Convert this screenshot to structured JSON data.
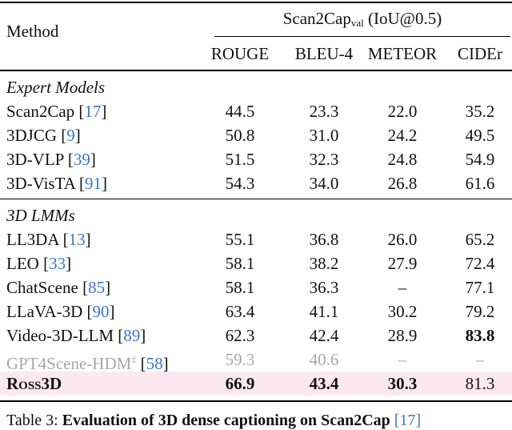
{
  "header": {
    "method": "Method",
    "group_main": "Scan2Cap",
    "group_sub": "val",
    "group_suffix": "(IoU@0.5)",
    "columns": [
      "ROUGE",
      "BLEU-4",
      "METEOR",
      "CIDEr"
    ]
  },
  "sections": [
    {
      "title": "Expert Models",
      "rows": [
        {
          "method": "Scan2Cap",
          "cite": "17",
          "values": [
            "44.5",
            "23.3",
            "22.0",
            "35.2"
          ]
        },
        {
          "method": "3DJCG",
          "cite": "9",
          "values": [
            "50.8",
            "31.0",
            "24.2",
            "49.5"
          ]
        },
        {
          "method": "3D-VLP",
          "cite": "39",
          "values": [
            "51.5",
            "32.3",
            "24.8",
            "54.9"
          ]
        },
        {
          "method": "3D-VisTA",
          "cite": "91",
          "values": [
            "54.3",
            "34.0",
            "26.8",
            "61.6"
          ]
        }
      ]
    },
    {
      "title": "3D LMMs",
      "rows": [
        {
          "method": "LL3DA",
          "cite": "13",
          "values": [
            "55.1",
            "36.8",
            "26.0",
            "65.2"
          ]
        },
        {
          "method": "LEO",
          "cite": "33",
          "values": [
            "58.1",
            "38.2",
            "27.9",
            "72.4"
          ]
        },
        {
          "method": "ChatScene",
          "cite": "85",
          "values": [
            "58.1",
            "36.3",
            "–",
            "77.1"
          ]
        },
        {
          "method": "LLaVA-3D",
          "cite": "90",
          "values": [
            "63.4",
            "41.1",
            "30.2",
            "79.2"
          ]
        },
        {
          "method": "Video-3D-LLM",
          "cite": "89",
          "values": [
            "62.3",
            "42.4",
            "28.9",
            "83.8"
          ],
          "bold": [
            false,
            false,
            false,
            true
          ]
        },
        {
          "method": "GPT4Scene-HDM",
          "sup": "‡",
          "cite": "58",
          "values": [
            "59.3",
            "40.6",
            "–",
            "–"
          ],
          "gray": true
        },
        {
          "method": "Ross3D",
          "values": [
            "66.9",
            "43.4",
            "30.3",
            "81.3"
          ],
          "bold": [
            true,
            true,
            true,
            false
          ],
          "highlight": true
        }
      ]
    }
  ],
  "caption": {
    "label": "Table 3:",
    "text": "Evaluation of 3D dense captioning on Scan2Cap",
    "cite": "17"
  },
  "colors": {
    "citation": "#3a78c2",
    "highlight": "#fce8ef",
    "gray_text": "#a8a8a8"
  }
}
